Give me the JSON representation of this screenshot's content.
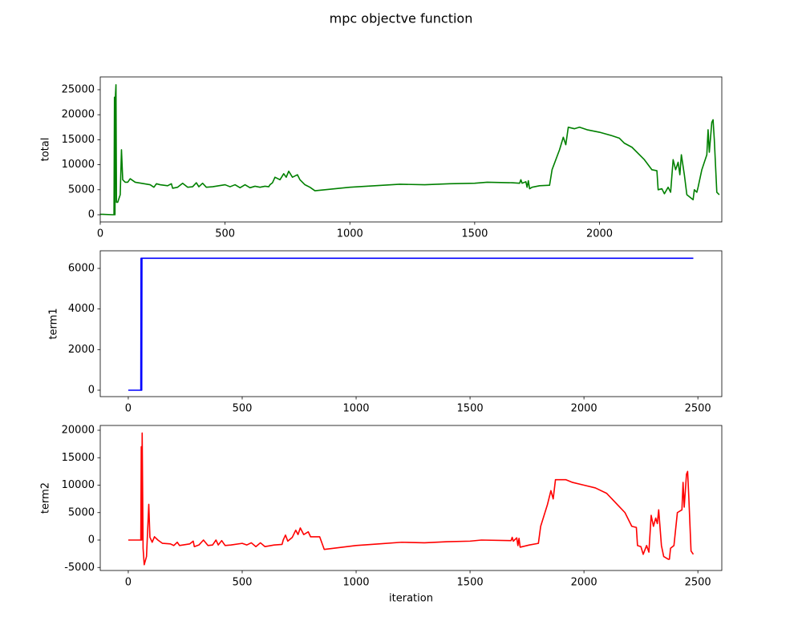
{
  "title": "mpc objectve function",
  "chart_data": [
    {
      "type": "line",
      "ylabel": "total",
      "x": [
        0,
        50,
        55,
        57,
        59,
        61,
        63,
        65,
        70,
        80,
        85,
        90,
        100,
        110,
        120,
        140,
        200,
        215,
        225,
        240,
        270,
        285,
        290,
        310,
        330,
        350,
        370,
        385,
        395,
        410,
        425,
        450,
        500,
        520,
        540,
        560,
        580,
        600,
        620,
        640,
        660,
        675,
        680,
        690,
        700,
        720,
        735,
        745,
        755,
        770,
        790,
        800,
        820,
        840,
        860,
        900,
        1000,
        1100,
        1200,
        1300,
        1400,
        1500,
        1550,
        1650,
        1680,
        1685,
        1690,
        1705,
        1710,
        1715,
        1720,
        1730,
        1760,
        1800,
        1810,
        1840,
        1855,
        1865,
        1875,
        1900,
        1920,
        1950,
        2000,
        2050,
        2080,
        2100,
        2130,
        2180,
        2210,
        2230,
        2235,
        2250,
        2260,
        2275,
        2285,
        2295,
        2305,
        2315,
        2322,
        2328,
        2340,
        2350,
        2370,
        2375,
        2380,
        2390,
        2395,
        2410,
        2430,
        2435,
        2440,
        2450,
        2455,
        2460,
        2470,
        2480
      ],
      "series": [
        {
          "color": "#008000",
          "values": [
            100,
            0,
            0,
            23500,
            0,
            24000,
            26000,
            2500,
            2500,
            4000,
            13000,
            7000,
            6500,
            6500,
            7200,
            6500,
            6000,
            5500,
            6200,
            6000,
            5800,
            6200,
            5300,
            5500,
            6300,
            5500,
            5600,
            6400,
            5600,
            6300,
            5500,
            5600,
            6000,
            5600,
            6000,
            5400,
            6000,
            5400,
            5700,
            5500,
            5700,
            5600,
            6000,
            6400,
            7500,
            7000,
            8200,
            7500,
            8700,
            7500,
            8000,
            7000,
            6000,
            5500,
            4800,
            5000,
            5500,
            5800,
            6100,
            6000,
            6200,
            6300,
            6500,
            6400,
            6300,
            7000,
            6300,
            6600,
            5500,
            6800,
            5200,
            5500,
            5800,
            5900,
            9000,
            13000,
            15500,
            14000,
            17500,
            17200,
            17500,
            17000,
            16500,
            15800,
            15300,
            14300,
            13500,
            11000,
            9000,
            8800,
            5000,
            5200,
            4200,
            5500,
            4500,
            11000,
            9000,
            10500,
            8000,
            12000,
            8000,
            4000,
            3200,
            3000,
            5000,
            4500,
            5500,
            9000,
            12000,
            17000,
            12500,
            18500,
            19000,
            15000,
            4500,
            4000
          ]
        }
      ],
      "xlim": [
        0,
        2490
      ],
      "ylim": [
        -1440,
        27560
      ],
      "xticks": [
        0,
        500,
        1000,
        1500,
        2000
      ],
      "yticks": [
        0,
        5000,
        10000,
        15000,
        20000,
        25000
      ]
    },
    {
      "type": "line",
      "ylabel": "term1",
      "x": [
        0,
        55,
        56,
        57,
        58,
        59,
        60,
        2480
      ],
      "series": [
        {
          "color": "#0000ff",
          "values": [
            0,
            0,
            6500,
            0,
            6500,
            0,
            6500,
            6500
          ]
        }
      ],
      "xlim": [
        -123,
        2605
      ],
      "ylim": [
        -316,
        6868
      ],
      "xticks": [
        0,
        500,
        1000,
        1500,
        2000,
        2500
      ],
      "yticks": [
        0,
        2000,
        4000,
        6000
      ]
    },
    {
      "type": "line",
      "ylabel": "term2",
      "xlabel": "iteration",
      "x": [
        0,
        50,
        55,
        57,
        59,
        61,
        65,
        70,
        80,
        90,
        95,
        105,
        115,
        130,
        150,
        185,
        200,
        215,
        225,
        270,
        285,
        290,
        310,
        330,
        350,
        370,
        385,
        395,
        410,
        425,
        450,
        500,
        520,
        540,
        560,
        580,
        600,
        640,
        675,
        680,
        690,
        700,
        720,
        735,
        745,
        755,
        770,
        790,
        800,
        840,
        860,
        900,
        1000,
        1100,
        1200,
        1300,
        1400,
        1500,
        1550,
        1680,
        1685,
        1690,
        1705,
        1710,
        1715,
        1720,
        1760,
        1800,
        1810,
        1840,
        1855,
        1865,
        1875,
        1920,
        1950,
        2000,
        2050,
        2100,
        2180,
        2210,
        2230,
        2235,
        2250,
        2260,
        2275,
        2285,
        2295,
        2305,
        2315,
        2322,
        2328,
        2340,
        2350,
        2370,
        2375,
        2380,
        2395,
        2410,
        2430,
        2435,
        2440,
        2450,
        2455,
        2460,
        2470,
        2480
      ],
      "series": [
        {
          "color": "#ff0000",
          "values": [
            0,
            0,
            0,
            17000,
            0,
            19500,
            -1500,
            -4500,
            -3000,
            6500,
            500,
            -400,
            600,
            0,
            -600,
            -700,
            -1000,
            -400,
            -1000,
            -700,
            -200,
            -1200,
            -900,
            0,
            -1000,
            -900,
            0,
            -900,
            -100,
            -1000,
            -900,
            -600,
            -900,
            -500,
            -1200,
            -500,
            -1200,
            -900,
            -800,
            0,
            900,
            -200,
            500,
            1800,
            1000,
            2200,
            1000,
            1500,
            600,
            600,
            -1700,
            -1500,
            -1000,
            -700,
            -400,
            -500,
            -300,
            -200,
            0,
            -100,
            500,
            -200,
            400,
            -1000,
            300,
            -1300,
            -900,
            -600,
            2500,
            6500,
            9000,
            7500,
            11000,
            11000,
            10500,
            10000,
            9500,
            8500,
            5000,
            2500,
            2300,
            -1000,
            -1200,
            -2600,
            -1000,
            -2200,
            4500,
            2500,
            4000,
            3000,
            5500,
            -1000,
            -3000,
            -3500,
            -3500,
            -1500,
            -1000,
            5000,
            5500,
            10500,
            6000,
            12000,
            12500,
            8000,
            -2000,
            -2600
          ]
        }
      ],
      "xlim": [
        -123,
        2605
      ],
      "ylim": [
        -5547,
        20876
      ],
      "xticks": [
        0,
        500,
        1000,
        1500,
        2000,
        2500
      ],
      "yticks": [
        -5000,
        0,
        5000,
        10000,
        15000,
        20000
      ]
    }
  ]
}
